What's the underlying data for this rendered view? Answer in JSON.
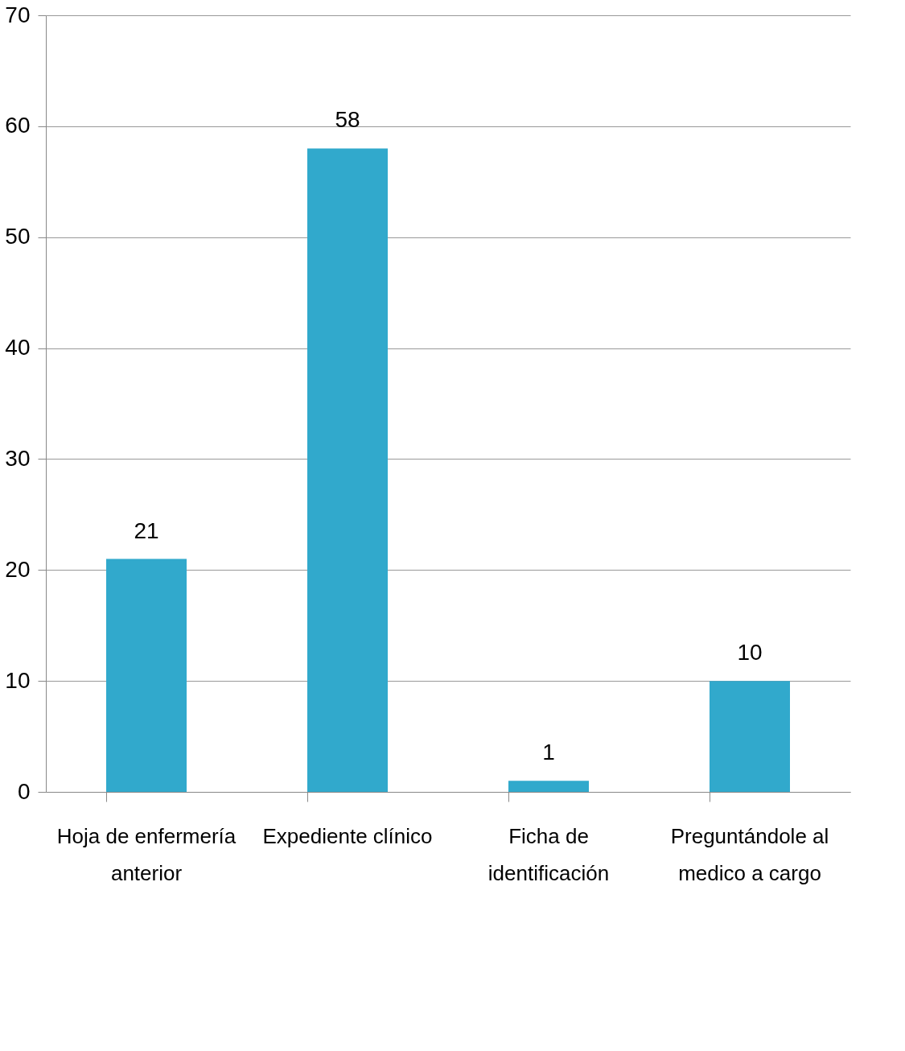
{
  "chart_data": {
    "type": "bar",
    "categories": [
      "Hoja de enfermería anterior",
      "Expediente clínico",
      "Ficha de identificación",
      "Preguntándole al medico a cargo"
    ],
    "values": [
      21,
      58,
      1,
      10
    ],
    "color": "#31a9cc",
    "ylim": [
      0,
      70
    ],
    "yticks": [
      0,
      10,
      20,
      30,
      40,
      50,
      60,
      70
    ],
    "grid": "y",
    "data_labels": true
  }
}
